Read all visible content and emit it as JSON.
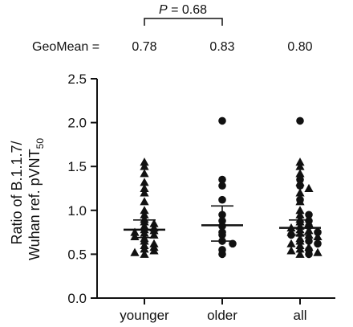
{
  "chart_data": {
    "type": "scatter",
    "ylabel_line1": "Ratio of B.1.1.7/",
    "ylabel_line2": "Wuhan ref. pVNT",
    "ylabel_subscript": "50",
    "ylim": [
      0,
      2.5
    ],
    "yticks": [
      "0.0",
      "0.5",
      "1.0",
      "1.5",
      "2.0",
      "2.5"
    ],
    "categories": [
      "younger",
      "older",
      "all"
    ],
    "geomean_label": "GeoMean =",
    "geomeans": [
      "0.78",
      "0.83",
      "0.80"
    ],
    "pvalue": {
      "italic": "P",
      "text": " = 0.68",
      "between": [
        "younger",
        "older"
      ]
    },
    "series": [
      {
        "name": "younger",
        "marker": "triangle",
        "geomean": 0.78,
        "ci": [
          0.69,
          0.89
        ],
        "values": [
          1.55,
          1.5,
          1.42,
          1.32,
          1.25,
          1.2,
          1.1,
          1.0,
          0.95,
          0.9,
          0.87,
          0.85,
          0.82,
          0.8,
          0.78,
          0.77,
          0.75,
          0.74,
          0.72,
          0.7,
          0.68,
          0.65,
          0.62,
          0.6,
          0.58,
          0.56,
          0.54,
          0.52,
          0.5
        ]
      },
      {
        "name": "older",
        "marker": "circle",
        "geomean": 0.83,
        "ci": [
          0.65,
          1.05
        ],
        "values": [
          2.02,
          1.35,
          1.28,
          1.12,
          0.95,
          0.88,
          0.82,
          0.75,
          0.72,
          0.65,
          0.62,
          0.55,
          0.5
        ]
      },
      {
        "name": "all",
        "marker": "mixed",
        "geomean": 0.8,
        "ci": [
          0.72,
          0.89
        ],
        "values_triangle": [
          1.55,
          1.5,
          1.42,
          1.32,
          1.25,
          1.2,
          1.1,
          1.0,
          0.95,
          0.9,
          0.87,
          0.85,
          0.82,
          0.8,
          0.78,
          0.77,
          0.75,
          0.74,
          0.72,
          0.7,
          0.68,
          0.65,
          0.62,
          0.6,
          0.58,
          0.56,
          0.54,
          0.52,
          0.5
        ],
        "values_circle": [
          2.02,
          1.35,
          1.28,
          1.12,
          0.95,
          0.88,
          0.82,
          0.75,
          0.72,
          0.65,
          0.62,
          0.55,
          0.5
        ]
      }
    ]
  }
}
